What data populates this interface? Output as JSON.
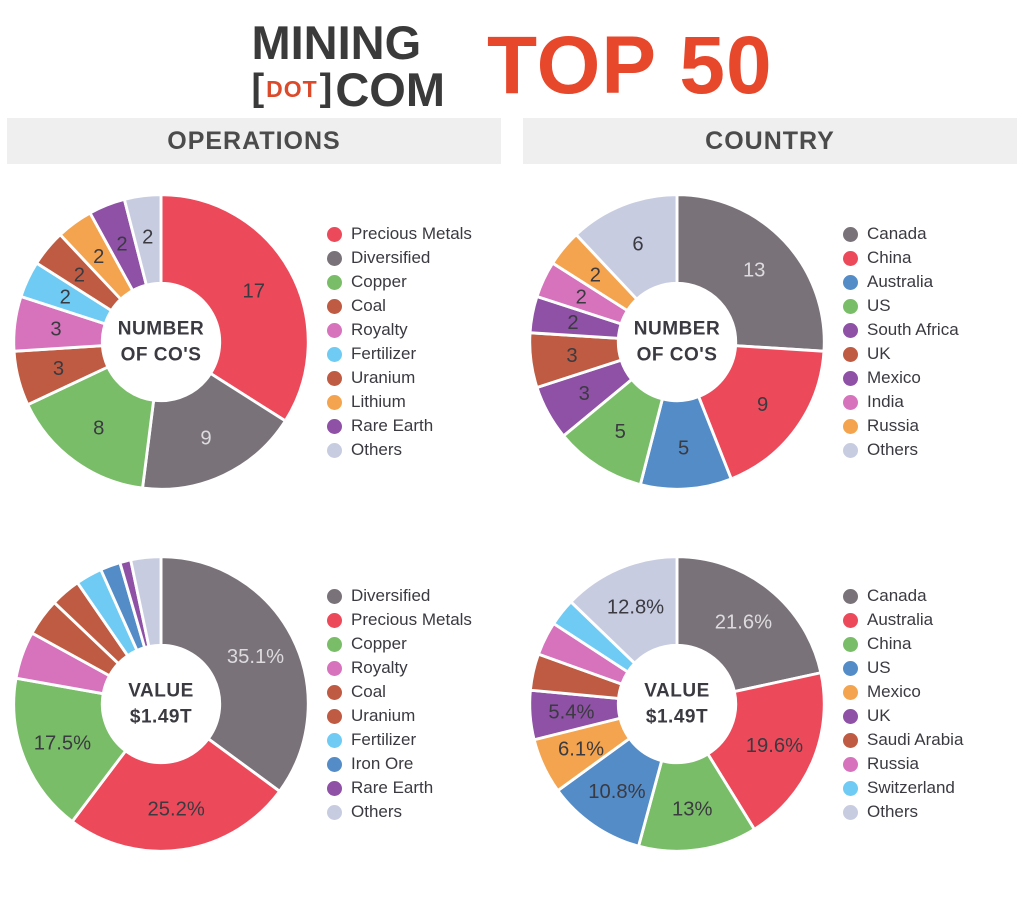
{
  "header": {
    "logo": {
      "word_top": "MINING",
      "bracket_open": "[",
      "dot": "DOT",
      "bracket_close": "]",
      "word_bottom": "COM"
    },
    "title": "TOP 50"
  },
  "section_headers": {
    "left": "OPERATIONS",
    "right": "COUNTRY"
  },
  "colors": {
    "accent": "#E7482C",
    "logo_dark": "#3B3A3B",
    "logo_dot": "#DA4A2B",
    "band_bg": "#EFEFEF",
    "band_text": "#4B4B4B",
    "text_dark": "#3A3A40",
    "label_light": "#DDDBDE"
  },
  "chart_data": [
    {
      "type": "pie",
      "variant": "donut",
      "section": "OPERATIONS",
      "center_label": [
        "NUMBER",
        "OF CO'S"
      ],
      "legend_position": "right",
      "slices": [
        {
          "name": "Precious Metals",
          "value": 17,
          "label": "17",
          "color": "#EC4A5B",
          "label_light": false
        },
        {
          "name": "Diversified",
          "value": 9,
          "label": "9",
          "color": "#797379",
          "label_light": true
        },
        {
          "name": "Copper",
          "value": 8,
          "label": "8",
          "color": "#7ABD68",
          "label_light": false
        },
        {
          "name": "Coal",
          "value": 3,
          "label": "3",
          "color": "#BF5B42",
          "label_light": false
        },
        {
          "name": "Royalty",
          "value": 3,
          "label": "3",
          "color": "#D673BC",
          "label_light": false
        },
        {
          "name": "Fertilizer",
          "value": 2,
          "label": "2",
          "color": "#6FCBF3",
          "label_light": false
        },
        {
          "name": "Uranium",
          "value": 2,
          "label": "2",
          "color": "#BF5B42",
          "label_light": false
        },
        {
          "name": "Lithium",
          "value": 2,
          "label": "2",
          "color": "#F4A44E",
          "label_light": false
        },
        {
          "name": "Rare Earth",
          "value": 2,
          "label": "2",
          "color": "#8E51A6",
          "label_light": false
        },
        {
          "name": "Others",
          "value": 2,
          "label": "2",
          "color": "#C7CCE1",
          "label_light": false
        }
      ]
    },
    {
      "type": "pie",
      "variant": "donut",
      "section": "COUNTRY",
      "center_label": [
        "NUMBER",
        "OF CO'S"
      ],
      "legend_position": "right",
      "slices": [
        {
          "name": "Canada",
          "value": 13,
          "label": "13",
          "color": "#797379",
          "label_light": true
        },
        {
          "name": "China",
          "value": 9,
          "label": "9",
          "color": "#EC4A5B",
          "label_light": false
        },
        {
          "name": "Australia",
          "value": 5,
          "label": "5",
          "color": "#548CC8",
          "label_light": false
        },
        {
          "name": "US",
          "value": 5,
          "label": "5",
          "color": "#7ABD68",
          "label_light": false
        },
        {
          "name": "South Africa",
          "value": 3,
          "label": "3",
          "color": "#8E51A6",
          "label_light": false
        },
        {
          "name": "UK",
          "value": 3,
          "label": "3",
          "color": "#BF5B42",
          "label_light": false
        },
        {
          "name": "Mexico",
          "value": 2,
          "label": "2",
          "color": "#8E51A6",
          "label_light": false
        },
        {
          "name": "India",
          "value": 2,
          "label": "2",
          "color": "#D673BC",
          "label_light": false
        },
        {
          "name": "Russia",
          "value": 2,
          "label": "2",
          "color": "#F4A44E",
          "label_light": false
        },
        {
          "name": "Others",
          "value": 6,
          "label": "6",
          "color": "#C7CCE1",
          "label_light": false
        }
      ]
    },
    {
      "type": "pie",
      "variant": "donut",
      "section": "OPERATIONS",
      "center_label": [
        "VALUE",
        "$1.49T"
      ],
      "legend_position": "right",
      "slices": [
        {
          "name": "Diversified",
          "value": 35.1,
          "label": "35.1%",
          "color": "#797379",
          "label_light": true
        },
        {
          "name": "Precious Metals",
          "value": 25.2,
          "label": "25.2%",
          "color": "#EC4A5B",
          "label_light": false
        },
        {
          "name": "Copper",
          "value": 17.5,
          "label": "17.5%",
          "color": "#7ABD68",
          "label_light": false
        },
        {
          "name": "Royalty",
          "value": 5.2,
          "label": "",
          "color": "#D673BC",
          "label_light": false
        },
        {
          "name": "Coal",
          "value": 4.1,
          "label": "",
          "color": "#BF5B42",
          "label_light": false
        },
        {
          "name": "Uranium",
          "value": 3.3,
          "label": "",
          "color": "#BF5B42",
          "label_light": false
        },
        {
          "name": "Fertilizer",
          "value": 2.9,
          "label": "",
          "color": "#6FCBF3",
          "label_light": false
        },
        {
          "name": "Iron Ore",
          "value": 2.2,
          "label": "",
          "color": "#548CC8",
          "label_light": false
        },
        {
          "name": "Rare Earth",
          "value": 1.2,
          "label": "",
          "color": "#8E51A6",
          "label_light": false
        },
        {
          "name": "Others",
          "value": 3.3,
          "label": "",
          "color": "#C7CCE1",
          "label_light": false
        }
      ]
    },
    {
      "type": "pie",
      "variant": "donut",
      "section": "COUNTRY",
      "center_label": [
        "VALUE",
        "$1.49T"
      ],
      "legend_position": "right",
      "slices": [
        {
          "name": "Canada",
          "value": 21.6,
          "label": "21.6%",
          "color": "#797379",
          "label_light": true
        },
        {
          "name": "Australia",
          "value": 19.6,
          "label": "19.6%",
          "color": "#EC4A5B",
          "label_light": false
        },
        {
          "name": "China",
          "value": 13,
          "label": "13%",
          "color": "#7ABD68",
          "label_light": false
        },
        {
          "name": "US",
          "value": 10.8,
          "label": "10.8%",
          "color": "#548CC8",
          "label_light": false
        },
        {
          "name": "Mexico",
          "value": 6.1,
          "label": "6.1%",
          "color": "#F4A44E",
          "label_light": false
        },
        {
          "name": "UK",
          "value": 5.4,
          "label": "5.4%",
          "color": "#8E51A6",
          "label_light": false
        },
        {
          "name": "Saudi Arabia",
          "value": 4.0,
          "label": "",
          "color": "#BF5B42",
          "label_light": false
        },
        {
          "name": "Russia",
          "value": 3.7,
          "label": "",
          "color": "#D673BC",
          "label_light": false
        },
        {
          "name": "Switzerland",
          "value": 3.0,
          "label": "",
          "color": "#6FCBF3",
          "label_light": false
        },
        {
          "name": "Others",
          "value": 12.8,
          "label": "12.8%",
          "color": "#C7CCE1",
          "label_light": false
        }
      ]
    }
  ]
}
